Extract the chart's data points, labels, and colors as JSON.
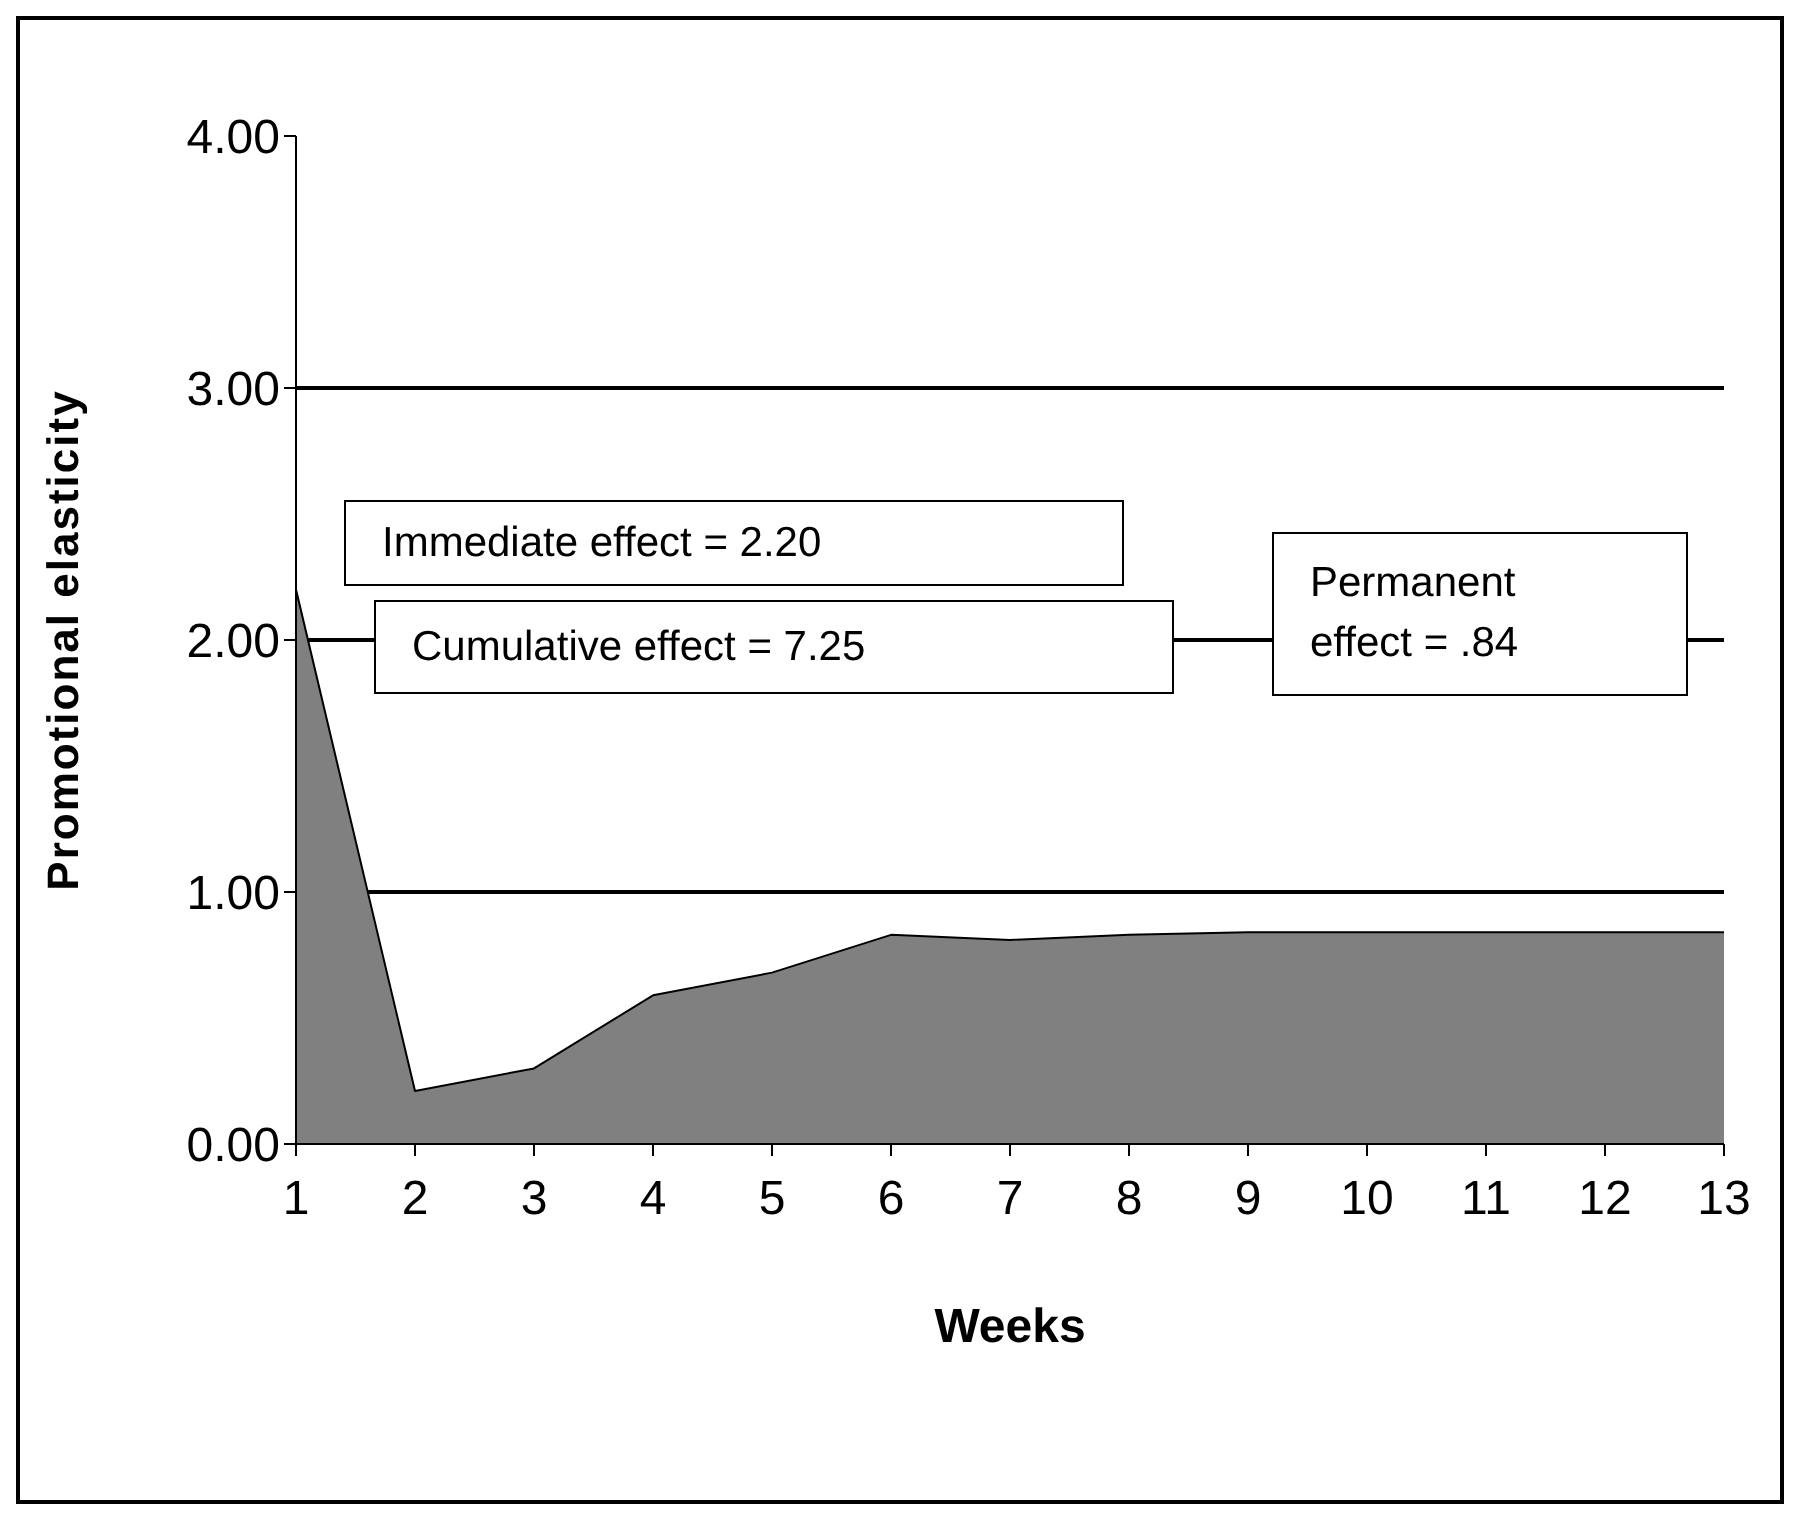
{
  "chart_data": {
    "type": "area",
    "xlabel": "Weeks",
    "ylabel": "Promotional elasticity",
    "x": [
      1,
      2,
      3,
      4,
      5,
      6,
      7,
      8,
      9,
      10,
      11,
      12,
      13
    ],
    "values": [
      2.2,
      0.21,
      0.3,
      0.59,
      0.68,
      0.83,
      0.81,
      0.83,
      0.84,
      0.84,
      0.84,
      0.84,
      0.84
    ],
    "color": "#808080",
    "xlim": [
      1,
      13
    ],
    "xticks": [
      1,
      2,
      3,
      4,
      5,
      6,
      7,
      8,
      9,
      10,
      11,
      12,
      13
    ],
    "ylim": [
      0,
      4
    ],
    "yticks": [
      {
        "value": 0,
        "label": "0.00"
      },
      {
        "value": 1,
        "label": "1.00"
      },
      {
        "value": 2,
        "label": "2.00"
      },
      {
        "value": 3,
        "label": "3.00"
      },
      {
        "value": 4,
        "label": "4.00"
      }
    ],
    "grid": "y",
    "annotations": [
      "Immediate effect = 2.20",
      "Cumulative effect = 7.25",
      "Permanent effect = .84"
    ]
  }
}
